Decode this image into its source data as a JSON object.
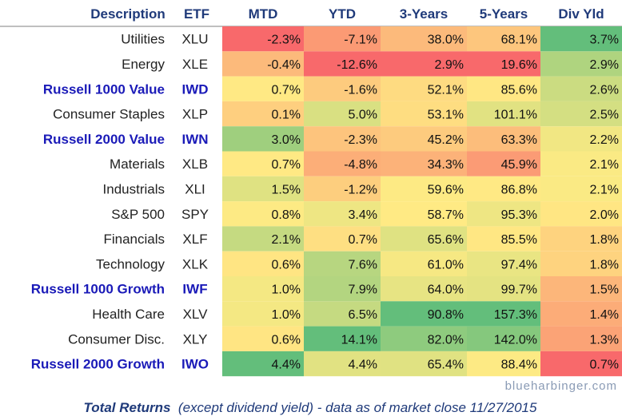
{
  "chart_data": {
    "type": "table",
    "headers": [
      "Description",
      "ETF",
      "MTD",
      "YTD",
      "3-Years",
      "5-Years",
      "Div Yld"
    ],
    "rows": [
      {
        "desc": "Utilities",
        "etf": "XLU",
        "bold": false,
        "values": [
          -2.3,
          -7.1,
          38.0,
          68.1,
          3.7
        ],
        "labels": [
          "-2.3%",
          "-7.1%",
          "38.0%",
          "68.1%",
          "3.7%"
        ]
      },
      {
        "desc": "Energy",
        "etf": "XLE",
        "bold": false,
        "values": [
          -0.4,
          -12.6,
          2.9,
          19.6,
          2.9
        ],
        "labels": [
          "-0.4%",
          "-12.6%",
          "2.9%",
          "19.6%",
          "2.9%"
        ]
      },
      {
        "desc": "Russell 1000 Value",
        "etf": "IWD",
        "bold": true,
        "values": [
          0.7,
          -1.6,
          52.1,
          85.6,
          2.6
        ],
        "labels": [
          "0.7%",
          "-1.6%",
          "52.1%",
          "85.6%",
          "2.6%"
        ]
      },
      {
        "desc": "Consumer Staples",
        "etf": "XLP",
        "bold": false,
        "values": [
          0.1,
          5.0,
          53.1,
          101.1,
          2.5
        ],
        "labels": [
          "0.1%",
          "5.0%",
          "53.1%",
          "101.1%",
          "2.5%"
        ]
      },
      {
        "desc": "Russell 2000 Value",
        "etf": "IWN",
        "bold": true,
        "values": [
          3.0,
          -2.3,
          45.2,
          63.3,
          2.2
        ],
        "labels": [
          "3.0%",
          "-2.3%",
          "45.2%",
          "63.3%",
          "2.2%"
        ]
      },
      {
        "desc": "Materials",
        "etf": "XLB",
        "bold": false,
        "values": [
          0.7,
          -4.8,
          34.3,
          45.9,
          2.1
        ],
        "labels": [
          "0.7%",
          "-4.8%",
          "34.3%",
          "45.9%",
          "2.1%"
        ]
      },
      {
        "desc": "Industrials",
        "etf": "XLI",
        "bold": false,
        "values": [
          1.5,
          -1.2,
          59.6,
          86.8,
          2.1
        ],
        "labels": [
          "1.5%",
          "-1.2%",
          "59.6%",
          "86.8%",
          "2.1%"
        ]
      },
      {
        "desc": "S&P 500",
        "etf": "SPY",
        "bold": false,
        "values": [
          0.8,
          3.4,
          58.7,
          95.3,
          2.0
        ],
        "labels": [
          "0.8%",
          "3.4%",
          "58.7%",
          "95.3%",
          "2.0%"
        ]
      },
      {
        "desc": "Financials",
        "etf": "XLF",
        "bold": false,
        "values": [
          2.1,
          0.7,
          65.6,
          85.5,
          1.8
        ],
        "labels": [
          "2.1%",
          "0.7%",
          "65.6%",
          "85.5%",
          "1.8%"
        ]
      },
      {
        "desc": "Technology",
        "etf": "XLK",
        "bold": false,
        "values": [
          0.6,
          7.6,
          61.0,
          97.4,
          1.8
        ],
        "labels": [
          "0.6%",
          "7.6%",
          "61.0%",
          "97.4%",
          "1.8%"
        ]
      },
      {
        "desc": "Russell 1000 Growth",
        "etf": "IWF",
        "bold": true,
        "values": [
          1.0,
          7.9,
          64.0,
          99.7,
          1.5
        ],
        "labels": [
          "1.0%",
          "7.9%",
          "64.0%",
          "99.7%",
          "1.5%"
        ]
      },
      {
        "desc": "Health Care",
        "etf": "XLV",
        "bold": false,
        "values": [
          1.0,
          6.5,
          90.8,
          157.3,
          1.4
        ],
        "labels": [
          "1.0%",
          "6.5%",
          "90.8%",
          "157.3%",
          "1.4%"
        ]
      },
      {
        "desc": "Consumer Disc.",
        "etf": "XLY",
        "bold": false,
        "values": [
          0.6,
          14.1,
          82.0,
          142.0,
          1.3
        ],
        "labels": [
          "0.6%",
          "14.1%",
          "82.0%",
          "142.0%",
          "1.3%"
        ]
      },
      {
        "desc": "Russell 2000 Growth",
        "etf": "IWO",
        "bold": true,
        "values": [
          4.4,
          4.4,
          65.4,
          88.4,
          0.7
        ],
        "labels": [
          "4.4%",
          "4.4%",
          "65.4%",
          "88.4%",
          "0.7%"
        ]
      }
    ],
    "color_scale": {
      "low": "#f8696b",
      "mid": "#ffeb84",
      "high": "#63be7b"
    }
  },
  "credit": "blueharbinger.com",
  "footer": {
    "bold": "Total Returns",
    "normal": "  (except dividend yield) - data as of market close 11/27/2015"
  }
}
